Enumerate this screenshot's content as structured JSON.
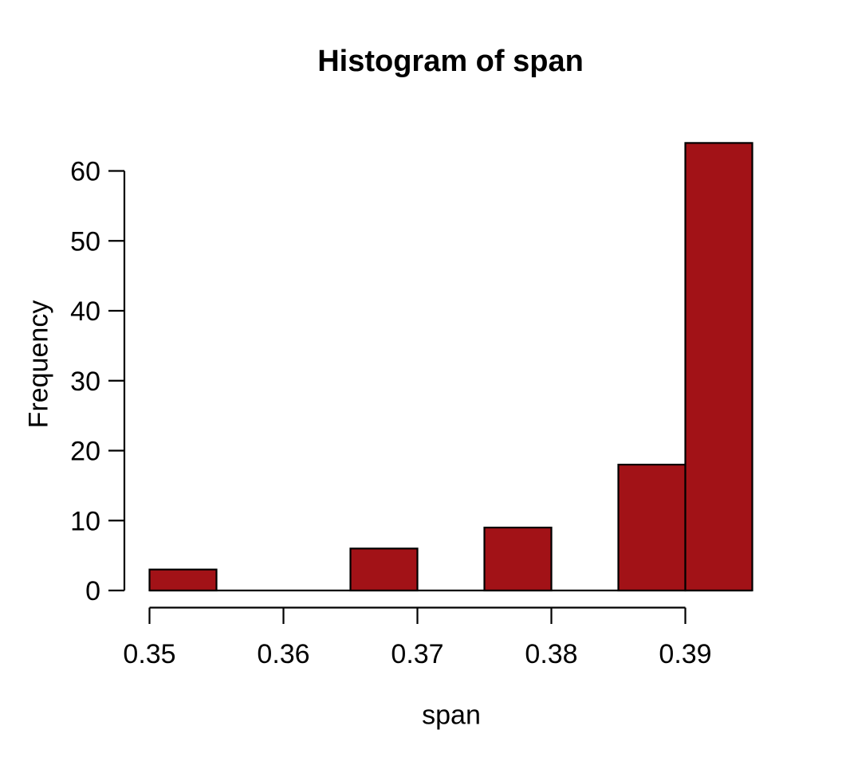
{
  "figure": {
    "background": "#FFFFFF"
  },
  "chart_data": {
    "type": "bar",
    "subtype": "histogram",
    "title": "Histogram of span",
    "xlabel": "span",
    "ylabel": "Frequency",
    "bin_width": 0.005,
    "bin_edges": [
      0.35,
      0.355,
      0.36,
      0.365,
      0.37,
      0.375,
      0.38,
      0.385,
      0.39,
      0.395
    ],
    "counts": [
      3,
      0,
      0,
      6,
      0,
      9,
      0,
      18,
      64
    ],
    "x_tick_values": [
      0.35,
      0.36,
      0.37,
      0.38,
      0.39
    ],
    "x_tick_labels": [
      "0.35",
      "0.36",
      "0.37",
      "0.38",
      "0.39"
    ],
    "y_tick_values": [
      0,
      10,
      20,
      30,
      40,
      50,
      60
    ],
    "y_tick_labels": [
      "0",
      "10",
      "20",
      "30",
      "40",
      "50",
      "60"
    ],
    "xlim": [
      0.35,
      0.395
    ],
    "ylim": [
      0,
      64
    ],
    "grid": false,
    "legend": null,
    "bar_fill": "#A21217",
    "bar_stroke": "#000000",
    "axis_color": "#000000",
    "text_color": "#000000"
  }
}
